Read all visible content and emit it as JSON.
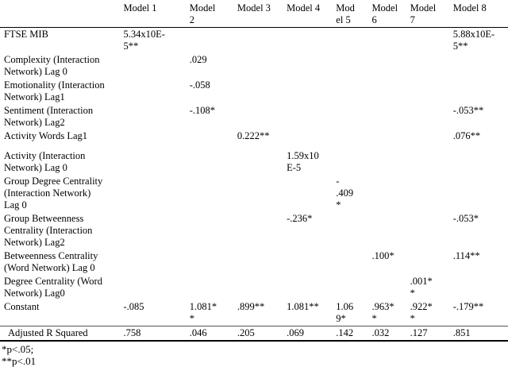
{
  "table": {
    "columns": [
      "",
      "Model 1",
      "Model\n2",
      "Model 3",
      "Model 4",
      "Mod\nel 5",
      "Model\n6",
      "Model\n7",
      "Model 8"
    ],
    "rows": [
      {
        "label": "FTSE MIB",
        "values": [
          "5.34x10E-\n5**",
          "",
          "",
          "",
          "",
          "",
          "",
          "5.88x10E-\n5**"
        ]
      },
      {
        "label": "Complexity (Interaction\nNetwork) Lag 0",
        "values": [
          "",
          ".029",
          "",
          "",
          "",
          "",
          "",
          ""
        ]
      },
      {
        "label": "Emotionality (Interaction\nNetwork) Lag1",
        "values": [
          "",
          "-.058",
          "",
          "",
          "",
          "",
          "",
          ""
        ]
      },
      {
        "label": "Sentiment (Interaction\nNetwork) Lag2",
        "values": [
          "",
          "-.108*",
          "",
          "",
          "",
          "",
          "",
          "-.053**"
        ]
      },
      {
        "label": "Activity Words Lag1",
        "values": [
          "",
          "",
          "0.222**",
          "",
          "",
          "",
          "",
          ".076**"
        ],
        "gap_after": true
      },
      {
        "label": "Activity (Interaction\nNetwork) Lag 0",
        "values": [
          "",
          "",
          "",
          "1.59x10\nE-5",
          "",
          "",
          "",
          ""
        ]
      },
      {
        "label": "Group Degree Centrality\n(Interaction Network)\nLag 0",
        "values": [
          "",
          "",
          "",
          "",
          "-\n.409\n*",
          "",
          "",
          ""
        ]
      },
      {
        "label": "Group Betweenness\nCentrality (Interaction\nNetwork) Lag2",
        "values": [
          "",
          "",
          "",
          "-.236*",
          "",
          "",
          "",
          "-.053*"
        ]
      },
      {
        "label": "Betweenness Centrality\n(Word Network) Lag 0",
        "values": [
          "",
          "",
          "",
          "",
          "",
          ".100*",
          "",
          ".114**"
        ]
      },
      {
        "label": "Degree Centrality (Word\nNetwork) Lag0",
        "values": [
          "",
          "",
          "",
          "",
          "",
          "",
          ".001*\n*",
          ""
        ]
      },
      {
        "label": "Constant",
        "values": [
          "-.085",
          "1.081*\n*",
          ".899**",
          "1.081**",
          "1.06\n9*",
          ".963*\n*",
          ".922*\n*",
          "-.179**"
        ]
      },
      {
        "label": "Adjusted R Squared",
        "values": [
          ".758",
          ".046",
          ".205",
          ".069",
          ".142",
          ".032",
          ".127",
          ".851"
        ],
        "indent": true,
        "rule_above": true,
        "last_row": true
      }
    ],
    "footnotes": [
      "*p<.05;",
      "**p<.01"
    ]
  },
  "colors": {
    "text": "#000000",
    "background": "#ffffff",
    "rule_dark": "#000000",
    "rule_light": "#555555"
  }
}
